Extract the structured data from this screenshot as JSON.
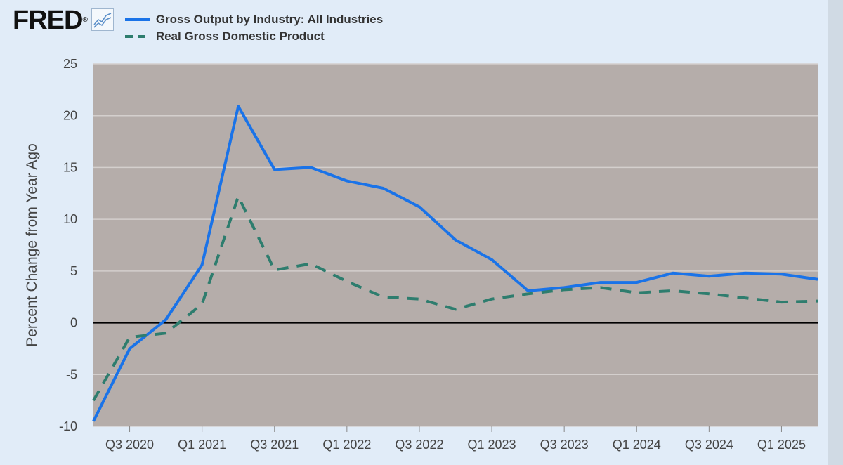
{
  "header": {
    "logo_text": "FRED",
    "logo_mark": "®",
    "chart_icon": "line-chart-icon"
  },
  "legend": [
    {
      "label": "Gross Output by Industry: All Industries",
      "style": "solid",
      "color": "#1a73e8"
    },
    {
      "label": "Real Gross Domestic Product",
      "style": "dashed",
      "color": "#2e7d6e"
    }
  ],
  "colors": {
    "page_background": "#e1ecf8",
    "plot_background": "#b5adaa",
    "gridline": "#d4cfcd",
    "zero_line": "#000000",
    "series_gross_output": "#1a73e8",
    "series_gdp": "#2e7d6e"
  },
  "chart_data": {
    "type": "line",
    "title": "",
    "xlabel": "",
    "ylabel": "Percent Change from Year Ago",
    "ylim": [
      -10,
      25
    ],
    "yticks": [
      -10,
      -5,
      0,
      5,
      10,
      15,
      20,
      25
    ],
    "grid": true,
    "legend_position": "top-left",
    "x": [
      "2020 Q2",
      "2020 Q3",
      "2020 Q4",
      "2021 Q1",
      "2021 Q2",
      "2021 Q3",
      "2021 Q4",
      "2022 Q1",
      "2022 Q2",
      "2022 Q3",
      "2022 Q4",
      "2023 Q1",
      "2023 Q2",
      "2023 Q3",
      "2023 Q4",
      "2024 Q1",
      "2024 Q2",
      "2024 Q3",
      "2024 Q4",
      "2025 Q1",
      "2025 Q2"
    ],
    "xtick_labels": [
      "Q3 2020",
      "Q1 2021",
      "Q3 2021",
      "Q1 2022",
      "Q3 2022",
      "Q1 2023",
      "Q3 2023",
      "Q1 2024",
      "Q3 2024",
      "Q1 2025"
    ],
    "xtick_positions": [
      1,
      3,
      5,
      7,
      9,
      11,
      13,
      15,
      17,
      19
    ],
    "series": [
      {
        "name": "Gross Output by Industry: All Industries",
        "style": "solid",
        "values": [
          -9.5,
          -2.5,
          0.3,
          5.6,
          20.9,
          14.8,
          15.0,
          13.7,
          13.0,
          11.2,
          8.0,
          6.1,
          3.1,
          3.4,
          3.9,
          3.9,
          4.8,
          4.5,
          4.8,
          4.7,
          4.2
        ]
      },
      {
        "name": "Real Gross Domestic Product",
        "style": "dashed",
        "values": [
          -7.5,
          -1.4,
          -1.0,
          1.8,
          12.2,
          5.1,
          5.7,
          4.0,
          2.5,
          2.3,
          1.3,
          2.3,
          2.8,
          3.2,
          3.4,
          2.9,
          3.1,
          2.8,
          2.4,
          2.0,
          2.1
        ]
      }
    ]
  }
}
